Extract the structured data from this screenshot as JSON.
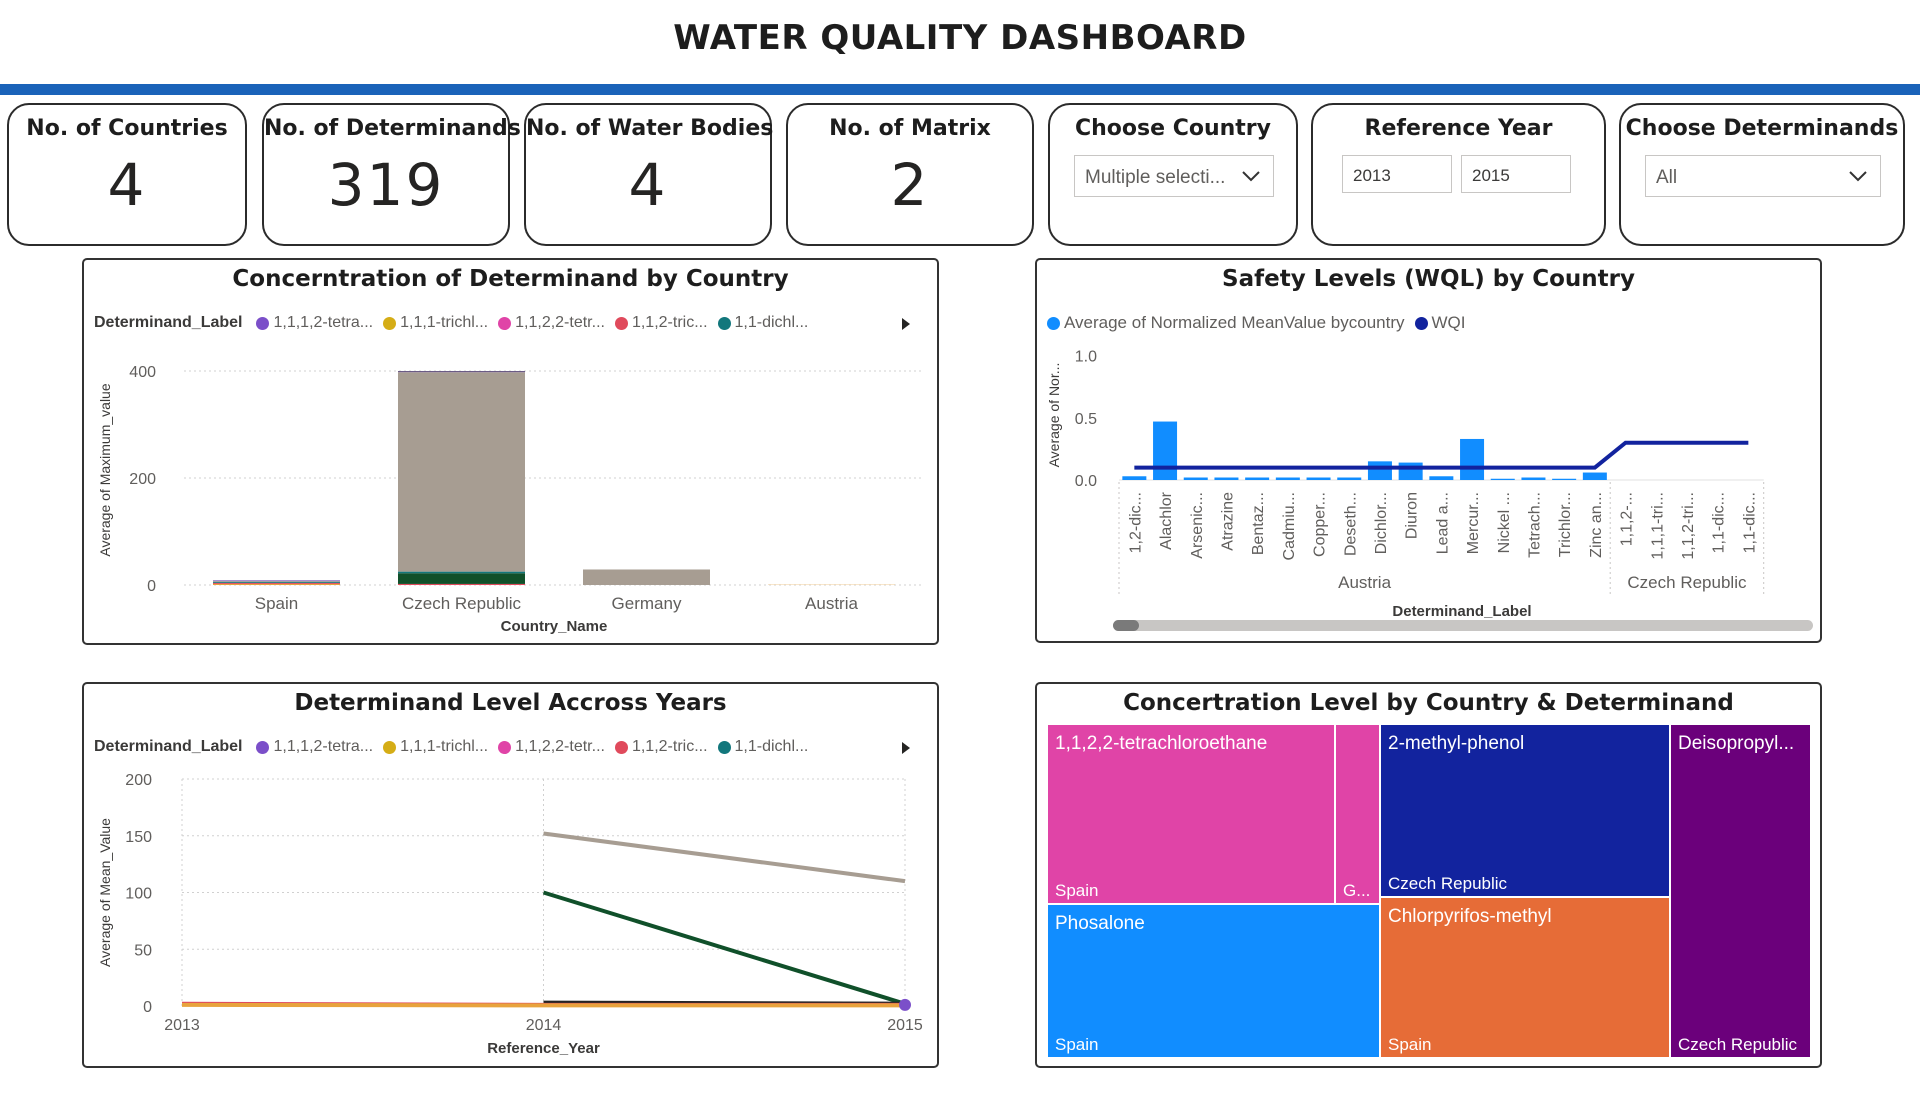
{
  "page": {
    "title": "WATER QUALITY DASHBOARD"
  },
  "colors": {
    "accent_bar": "#1a63b9"
  },
  "kpis": [
    {
      "label": "No. of Countries",
      "value": "4"
    },
    {
      "label": "No. of Determinands",
      "value": "319"
    },
    {
      "label": "No. of Water Bodies",
      "value": "4"
    },
    {
      "label": "No. of Matrix",
      "value": "2"
    }
  ],
  "filters": {
    "country": {
      "label": "Choose Country",
      "value": "Multiple selecti..."
    },
    "year": {
      "label": "Reference Year",
      "from": "2013",
      "to": "2015"
    },
    "determinands": {
      "label": "Choose Determinands",
      "value": "All"
    }
  },
  "legend_common": {
    "title": "Determinand_Label",
    "items": [
      {
        "label": "1,1,1,2-tetra...",
        "color": "#7b4fc9"
      },
      {
        "label": "1,1,1-trichl...",
        "color": "#d5ad16"
      },
      {
        "label": "1,1,2,2-tetr...",
        "color": "#e044a7"
      },
      {
        "label": "1,1,2-tric...",
        "color": "#e04a5c"
      },
      {
        "label": "1,1-dichl...",
        "color": "#12777c"
      }
    ]
  },
  "chart_data": [
    {
      "id": "bar",
      "type": "bar",
      "stacked": true,
      "title": "Concerntration of Determinand by Country",
      "xlabel": "Country_Name",
      "ylabel": "Average of Maximum_value",
      "ylim": [
        0,
        430
      ],
      "yticks": [
        "0",
        "200",
        "400"
      ],
      "categories": [
        "Spain",
        "Czech Republic",
        "Germany",
        "Austria"
      ],
      "series": [
        {
          "values": [
            2,
            0,
            0,
            0.5
          ],
          "color": "#e8a33d"
        },
        {
          "values": [
            2,
            2,
            0,
            0
          ],
          "color": "#e04a5c"
        },
        {
          "values": [
            0,
            20,
            0,
            0
          ],
          "color": "#10502a"
        },
        {
          "values": [
            2,
            3,
            0,
            0
          ],
          "color": "#12777c"
        },
        {
          "values": [
            2,
            373,
            29,
            0
          ],
          "color": "#a79d92"
        },
        {
          "values": [
            1,
            1,
            0,
            0
          ],
          "color": "#7b4fc9"
        },
        {
          "values": [
            0,
            1,
            0,
            0
          ],
          "color": "#444444"
        }
      ],
      "grid": true
    },
    {
      "id": "combo",
      "type": "bar",
      "title": "Safety Levels (WQL) by Country",
      "xlabel": "Determinand_Label",
      "ylabel": "Average of Nor...",
      "ylim": [
        0,
        1.0
      ],
      "yticks": [
        "0.0",
        "0.5",
        "1.0"
      ],
      "legend": [
        {
          "label": "Average of Normalized MeanValue bycountry",
          "color": "#118dff"
        },
        {
          "label": "WQI",
          "color": "#12239e"
        }
      ],
      "categories": [
        "1,2-dic...",
        "Alachlor",
        "Arsenic...",
        "Atrazine",
        "Bentaz...",
        "Cadmiu...",
        "Copper...",
        "Deseth...",
        "Dichlor...",
        "Diuron",
        "Lead a...",
        "Mercur...",
        "Nickel ...",
        "Tetrach...",
        "Trichlor...",
        "Zinc an...",
        "1,1,2-...",
        "1,1,1-tri...",
        "1,1,2-tri...",
        "1,1-dic...",
        "1,1-dic..."
      ],
      "groups": [
        {
          "label": "Austria",
          "start": 0,
          "end": 15
        },
        {
          "label": "Czech Republic",
          "start": 16,
          "end": 20
        }
      ],
      "bar_values": [
        0.03,
        0.47,
        0.02,
        0.02,
        0.02,
        0.02,
        0.02,
        0.02,
        0.15,
        0.14,
        0.03,
        0.33,
        0.01,
        0.02,
        0.01,
        0.06,
        0,
        0,
        0,
        0,
        0
      ],
      "line_values": [
        0.1,
        0.1,
        0.1,
        0.1,
        0.1,
        0.1,
        0.1,
        0.1,
        0.1,
        0.1,
        0.1,
        0.1,
        0.1,
        0.1,
        0.1,
        0.1,
        0.3,
        0.3,
        0.3,
        0.3,
        0.3
      ]
    },
    {
      "id": "line",
      "type": "line",
      "title": "Determinand Level Accross Years",
      "xlabel": "Reference_Year",
      "ylabel": "Average of Mean_Value",
      "x": [
        "2013",
        "2014",
        "2015"
      ],
      "ylim": [
        0,
        200
      ],
      "yticks": [
        "0",
        "50",
        "100",
        "150",
        "200"
      ],
      "series": [
        {
          "color": "#a79d92",
          "values": [
            null,
            152,
            110
          ]
        },
        {
          "color": "#10502a",
          "values": [
            null,
            100,
            2
          ]
        },
        {
          "color": "#252423",
          "values": [
            null,
            3,
            2
          ]
        },
        {
          "color": "#e04a5c",
          "values": [
            2,
            1,
            1
          ]
        },
        {
          "color": "#e8a33d",
          "values": [
            1,
            0.5,
            0.5
          ]
        },
        {
          "color": "#7b4fc9",
          "values": [
            null,
            null,
            1
          ]
        }
      ]
    },
    {
      "id": "treemap",
      "type": "treemap",
      "title": "Concertration Level by Country & Determinand",
      "cells": [
        {
          "label": "1,1,2,2-tetrachloroethane",
          "group": "Spain",
          "color": "#e044a7"
        },
        {
          "label": "",
          "group": "G...",
          "color": "#e044a7"
        },
        {
          "label": "Phosalone",
          "group": "Spain",
          "color": "#118dff"
        },
        {
          "label": "2-methyl-phenol",
          "group": "Czech Republic",
          "color": "#12239e"
        },
        {
          "label": "Chlorpyrifos-methyl",
          "group": "Spain",
          "color": "#e66c37"
        },
        {
          "label": "Deisopropyl...",
          "group": "Czech Republic",
          "color": "#6b007b"
        }
      ]
    }
  ]
}
